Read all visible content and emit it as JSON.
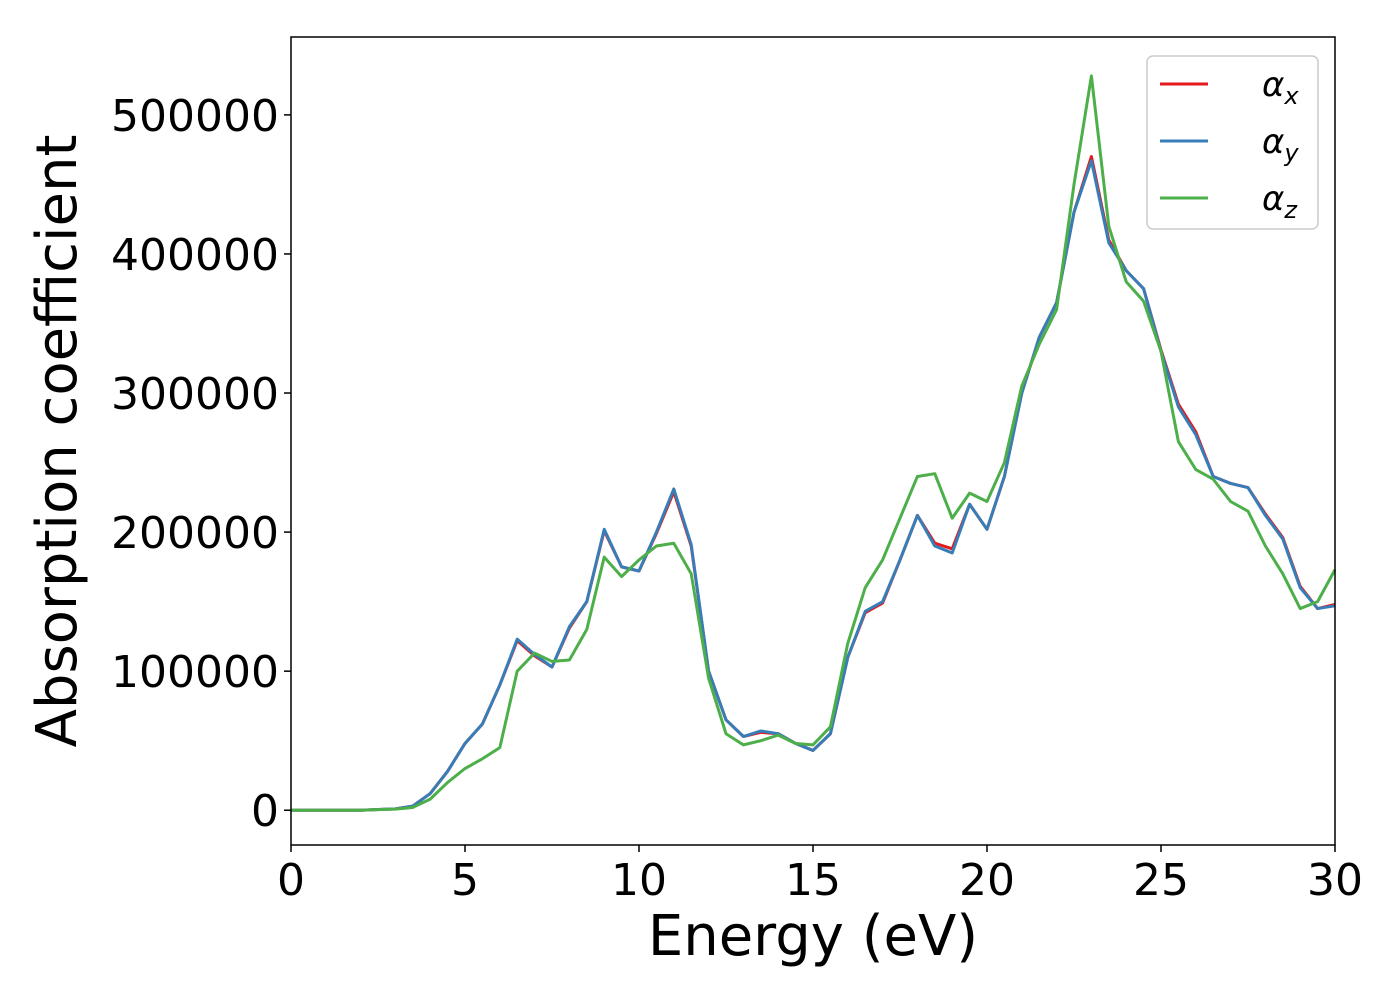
{
  "chart_data": {
    "type": "line",
    "xlabel": "Energy (eV)",
    "ylabel": "Absorption coefficient",
    "x": [
      0,
      0.5,
      1,
      1.5,
      2,
      2.5,
      3,
      3.5,
      4,
      4.5,
      5,
      5.5,
      6,
      6.5,
      7,
      7.5,
      8,
      8.5,
      9,
      9.5,
      10,
      10.5,
      11,
      11.5,
      12,
      12.5,
      13,
      13.5,
      14,
      14.5,
      15,
      15.5,
      16,
      16.5,
      17,
      17.5,
      18,
      18.5,
      19,
      19.5,
      20,
      20.5,
      21,
      21.5,
      22,
      22.5,
      23,
      23.5,
      24,
      24.5,
      25,
      25.5,
      26,
      26.5,
      27,
      27.5,
      28,
      28.5,
      29,
      29.5,
      30
    ],
    "series": [
      {
        "name": "αx",
        "color": "#e41a1c",
        "values": [
          0,
          0,
          0,
          0,
          0,
          500,
          1000,
          3000,
          12000,
          28000,
          48000,
          62000,
          90000,
          122000,
          111000,
          103000,
          131000,
          150000,
          201000,
          175000,
          172000,
          199000,
          229000,
          190000,
          100000,
          65000,
          53000,
          56000,
          55000,
          48000,
          43000,
          55000,
          110000,
          142000,
          149000,
          180000,
          212000,
          192000,
          188000,
          220000,
          202000,
          240000,
          300000,
          340000,
          365000,
          430000,
          470000,
          410000,
          388000,
          375000,
          331000,
          292000,
          272000,
          240000,
          235000,
          232000,
          213000,
          196000,
          161000,
          145000,
          148000
        ]
      },
      {
        "name": "αy",
        "color": "#377eb8",
        "values": [
          0,
          0,
          0,
          0,
          0,
          500,
          1000,
          3000,
          12000,
          28000,
          48000,
          62000,
          90000,
          123000,
          112000,
          103000,
          132000,
          150000,
          202000,
          175000,
          172000,
          200000,
          231000,
          191000,
          100000,
          65000,
          53000,
          57000,
          55000,
          48000,
          43000,
          55000,
          110000,
          143000,
          150000,
          180000,
          212000,
          190000,
          185000,
          220000,
          202000,
          240000,
          300000,
          340000,
          365000,
          430000,
          467000,
          408000,
          388000,
          375000,
          330000,
          290000,
          270000,
          240000,
          235000,
          232000,
          212000,
          195000,
          160000,
          145000,
          147000
        ]
      },
      {
        "name": "αz",
        "color": "#4daf4a",
        "values": [
          0,
          0,
          0,
          0,
          0,
          400,
          800,
          2000,
          8000,
          20000,
          30000,
          37000,
          45000,
          100000,
          113000,
          107000,
          108000,
          130000,
          182000,
          168000,
          180000,
          190000,
          192000,
          170000,
          95000,
          55000,
          47000,
          50000,
          54000,
          48000,
          47000,
          60000,
          120000,
          160000,
          180000,
          210000,
          240000,
          242000,
          210000,
          228000,
          222000,
          250000,
          305000,
          335000,
          360000,
          450000,
          528000,
          420000,
          380000,
          366000,
          330000,
          265000,
          245000,
          238000,
          222000,
          215000,
          190000,
          170000,
          145000,
          150000,
          173000
        ]
      }
    ],
    "xlim": [
      0,
      30
    ],
    "xticks": [
      0,
      5,
      10,
      15,
      20,
      25,
      30
    ],
    "ylim": [
      -25000,
      556000
    ],
    "yticks": [
      0,
      100000,
      200000,
      300000,
      400000,
      500000
    ],
    "grid": false,
    "legend": "upper right"
  }
}
